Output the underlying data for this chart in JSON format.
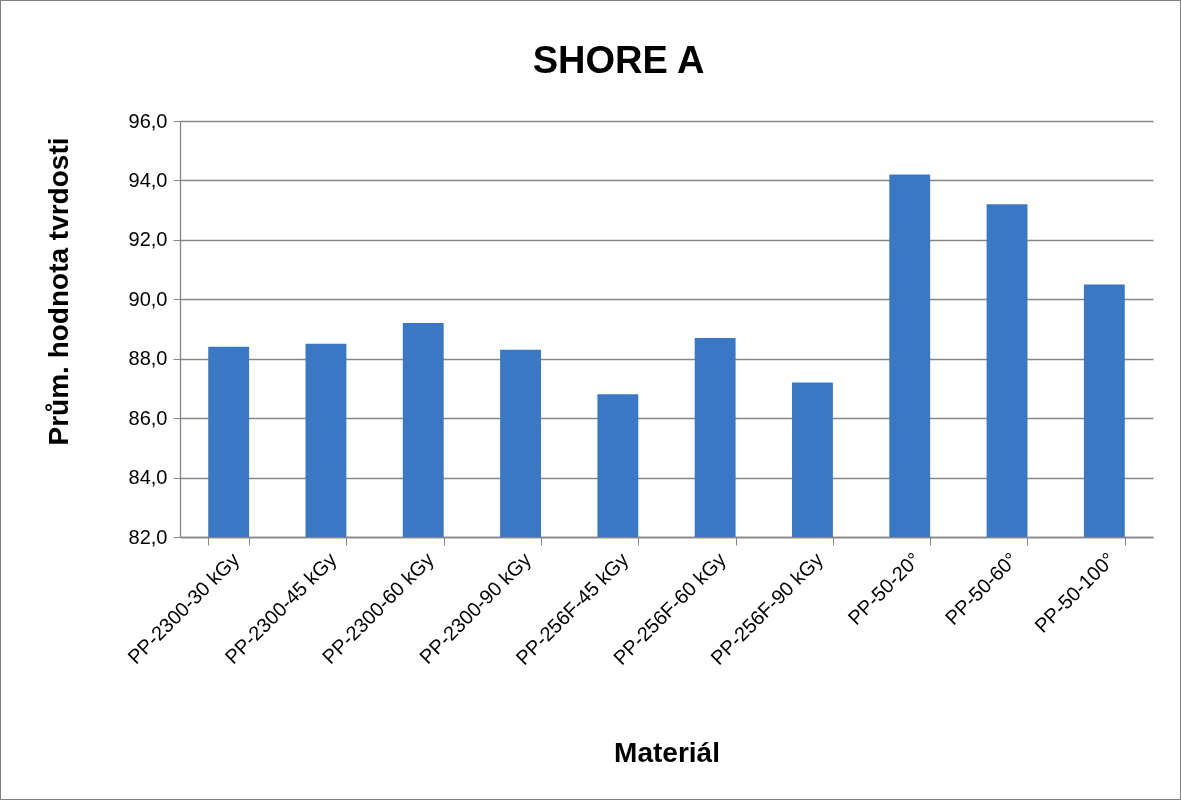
{
  "chart_data": {
    "type": "bar",
    "title": "SHORE A",
    "xlabel": "Materiál",
    "ylabel": "Prům. hodnota tvrdosti",
    "categories": [
      "PP-2300-30 kGy",
      "PP-2300-45 kGy",
      "PP-2300-60 kGy",
      "PP-2300-90 kGy",
      "PP-256F-45 kGy",
      "PP-256F-60 kGy",
      "PP-256F-90 kGy",
      "PP-50-20°",
      "PP-50-60°",
      "PP-50-100°"
    ],
    "values": [
      88.4,
      88.5,
      89.2,
      88.3,
      86.8,
      88.7,
      87.2,
      94.2,
      93.2,
      90.5
    ],
    "color": "#3a78c5",
    "ylim": [
      82,
      96
    ],
    "yticks": [
      {
        "value": 82,
        "label": "82,0"
      },
      {
        "value": 84,
        "label": "84,0"
      },
      {
        "value": 86,
        "label": "86,0"
      },
      {
        "value": 88,
        "label": "88,0"
      },
      {
        "value": 90,
        "label": "90,0"
      },
      {
        "value": 92,
        "label": "92,0"
      },
      {
        "value": 94,
        "label": "94,0"
      },
      {
        "value": 96,
        "label": "96,0"
      }
    ],
    "grid": "y"
  }
}
